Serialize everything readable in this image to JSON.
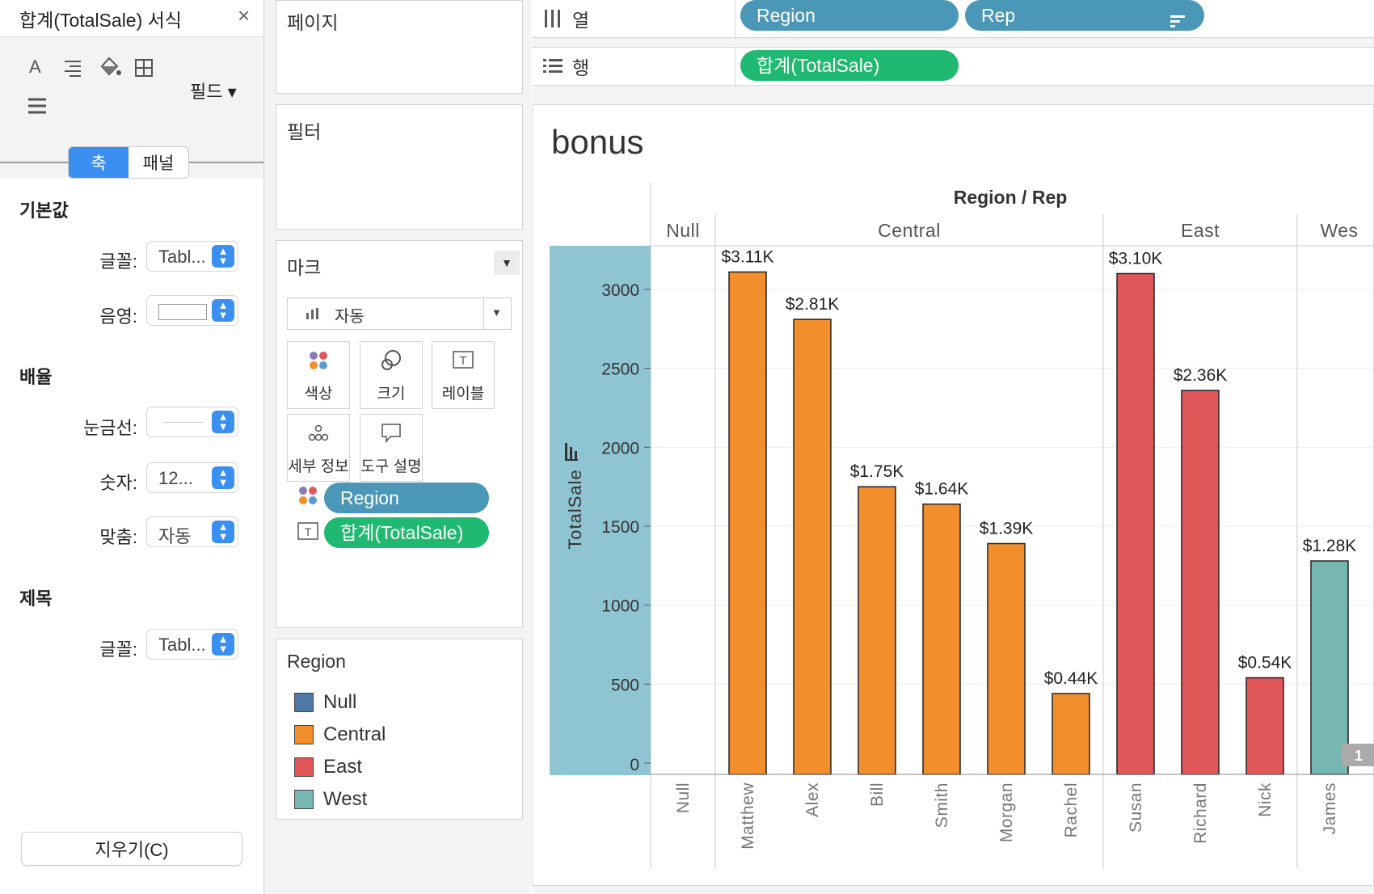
{
  "format_pane": {
    "title": "합계(TotalSale) 서식",
    "close": "×",
    "field_label": "필드 ▾",
    "tabs": [
      "축",
      "패널"
    ],
    "sections": {
      "default": "기본값",
      "scale": "배율",
      "title": "제목"
    },
    "rows": {
      "font": {
        "label": "글꼴:",
        "value": "Tabl..."
      },
      "shading": {
        "label": "음영:"
      },
      "tickmarks": {
        "label": "눈금선:"
      },
      "number": {
        "label": "숫자:",
        "value": "12..."
      },
      "align": {
        "label": "맞춤:",
        "value": "자동"
      },
      "title_font": {
        "label": "글꼴:",
        "value": "Tabl..."
      }
    },
    "clear_button": "지우기(C)"
  },
  "pages_card": {
    "title": "페이지"
  },
  "filters_card": {
    "title": "필터"
  },
  "marks_card": {
    "title": "마크",
    "mark_type": "자동",
    "buttons": [
      {
        "label": "색상",
        "icon": "color-icon"
      },
      {
        "label": "크기",
        "icon": "size-icon"
      },
      {
        "label": "레이블",
        "icon": "label-icon"
      },
      {
        "label": "세부 정보",
        "icon": "detail-icon"
      },
      {
        "label": "도구 설명",
        "icon": "tooltip-icon"
      }
    ],
    "pills": [
      {
        "text": "Region",
        "kind": "color"
      },
      {
        "text": "합계(TotalSale)",
        "kind": "label"
      }
    ]
  },
  "legend": {
    "title": "Region",
    "items": [
      {
        "label": "Null",
        "color": "#4e79a7"
      },
      {
        "label": "Central",
        "color": "#f28e2b"
      },
      {
        "label": "East",
        "color": "#e15759"
      },
      {
        "label": "West",
        "color": "#76b7b2"
      }
    ]
  },
  "columns_shelf": {
    "label": "열",
    "pills": [
      "Region",
      "Rep"
    ]
  },
  "rows_shelf": {
    "label": "행",
    "pills": [
      "합계(TotalSale)"
    ]
  },
  "view": {
    "title": "bonus",
    "header": "Region / Rep",
    "badge": "1"
  },
  "chart_data": {
    "type": "bar",
    "ylabel": "TotalSale",
    "ylim": [
      0,
      3100
    ],
    "yticks": [
      0,
      500,
      1000,
      1500,
      2000,
      2500,
      3000
    ],
    "groups": [
      {
        "region": "Null",
        "label": "Null",
        "reps": [
          "Null"
        ]
      },
      {
        "region": "Central",
        "label": "Central",
        "reps": [
          "Matthew",
          "Alex",
          "Bill",
          "Smith",
          "Morgan",
          "Rachel"
        ]
      },
      {
        "region": "East",
        "label": "East",
        "reps": [
          "Susan",
          "Richard",
          "Nick"
        ]
      },
      {
        "region": "West",
        "label": "Wes",
        "reps": [
          "James"
        ]
      }
    ],
    "bars": [
      {
        "rep": "Matthew",
        "region": "Central",
        "value": 3110,
        "label": "$3.11K"
      },
      {
        "rep": "Alex",
        "region": "Central",
        "value": 2810,
        "label": "$2.81K"
      },
      {
        "rep": "Bill",
        "region": "Central",
        "value": 1750,
        "label": "$1.75K"
      },
      {
        "rep": "Smith",
        "region": "Central",
        "value": 1640,
        "label": "$1.64K"
      },
      {
        "rep": "Morgan",
        "region": "Central",
        "value": 1390,
        "label": "$1.39K"
      },
      {
        "rep": "Rachel",
        "region": "Central",
        "value": 440,
        "label": "$0.44K"
      },
      {
        "rep": "Susan",
        "region": "East",
        "value": 3100,
        "label": "$3.10K"
      },
      {
        "rep": "Richard",
        "region": "East",
        "value": 2360,
        "label": "$2.36K"
      },
      {
        "rep": "Nick",
        "region": "East",
        "value": 540,
        "label": "$0.54K"
      },
      {
        "rep": "James",
        "region": "West",
        "value": 1280,
        "label": "$1.28K"
      }
    ],
    "region_colors": {
      "Null": "#4e79a7",
      "Central": "#f28e2b",
      "East": "#e15759",
      "West": "#76b7b2"
    }
  }
}
